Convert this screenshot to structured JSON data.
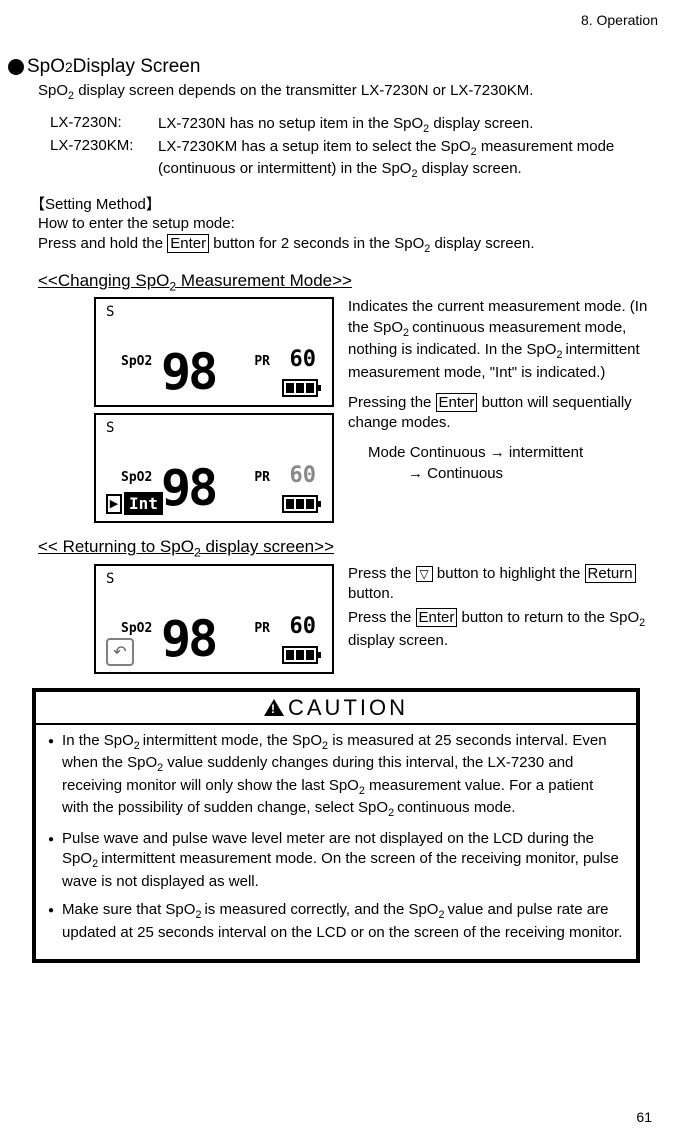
{
  "header": {
    "chapter": "8.  Operation"
  },
  "title": {
    "text_part1": "SpO",
    "sub": "2",
    "text_part2": " Display Screen"
  },
  "intro": {
    "pre": "SpO",
    "sub": "2",
    "post": " display screen depends on the transmitter LX-7230N or LX-7230KM."
  },
  "models": [
    {
      "label": "LX-7230N:",
      "desc_pre": "LX-7230N has no setup item in the SpO",
      "desc_sub": "2",
      "desc_post": " display screen."
    },
    {
      "label": "LX-7230KM:",
      "desc_pre": "LX-7230KM has a setup item to select the SpO",
      "desc_sub": "2",
      "desc_mid": " measurement mode (continuous or intermittent) in the SpO",
      "desc_sub2": "2",
      "desc_post": " display screen."
    }
  ],
  "setting": {
    "heading": "【Setting Method】",
    "line1": "How to enter the setup mode:",
    "line2_pre": "Press and hold the ",
    "line2_btn": "Enter",
    "line2_mid": " button for 2 seconds in the SpO",
    "line2_sub": "2",
    "line2_post": " display screen."
  },
  "changing": {
    "heading_pre": "<<Changing SpO",
    "heading_sub": "2",
    "heading_post": " Measurement Mode>>",
    "p1_a": "Indicates the current measurement mode. (In the SpO",
    "p1_sub1": "2 ",
    "p1_b": "continuous measurement mode, nothing is indicated. In the SpO",
    "p1_sub2": "2 ",
    "p1_c": "intermittent measurement mode, \"Int\" is indicated.)",
    "p2_a": "Pressing the ",
    "p2_btn": "Enter",
    "p2_b": " button will sequentially change modes.",
    "p3": "Mode Continuous → intermittent",
    "p4": "→ Continuous",
    "screen1": {
      "sig": "S",
      "label": "SpO2",
      "value": "98",
      "pr_label": "PR",
      "pr_value": "60"
    },
    "screen2": {
      "sig": "S",
      "label": "SpO2",
      "value": "98",
      "pr_label": "PR",
      "pr_value": "60",
      "int": "Int"
    }
  },
  "returning": {
    "heading_pre": "<< Returning to SpO",
    "heading_sub": "2",
    "heading_post": " display screen>>",
    "p1_a": "Press the ",
    "p1_btn": "▽",
    "p1_b": " button to highlight the ",
    "p1_btn2": "Return",
    "p1_c": " button.",
    "p2_a": "Press the ",
    "p2_btn": "Enter",
    "p2_b": " button to return to the SpO",
    "p2_sub": "2",
    "p2_c": " display screen.",
    "screen": {
      "sig": "S",
      "label": "SpO2",
      "value": "98",
      "pr_label": "PR",
      "pr_value": "60"
    }
  },
  "caution": {
    "title": "CAUTION",
    "items": [
      {
        "a": "In the SpO",
        "s1": "2 ",
        "b": "intermittent mode, the SpO",
        "s2": "2",
        "c": " is measured at 25 seconds interval. Even when the SpO",
        "s3": "2",
        "d": " value suddenly changes during this interval, the LX-7230 and receiving monitor will only show the last SpO",
        "s4": "2",
        "e": " measurement value. For a patient with the possibility of sudden change, select SpO",
        "s5": "2 ",
        "f": "continuous mode."
      },
      {
        "a": "Pulse wave and pulse wave level meter are not displayed on the LCD during the SpO",
        "s1": "2 ",
        "b": "intermittent measurement mode. On the screen of the receiving monitor, pulse wave is not displayed as well."
      },
      {
        "a": "Make sure that SpO",
        "s1": "2 ",
        "b": "is measured correctly, and the SpO",
        "s2": "2 ",
        "c": "value and pulse rate are updated at 25 seconds interval on the LCD or on the screen of the receiving monitor."
      }
    ]
  },
  "page": "61"
}
